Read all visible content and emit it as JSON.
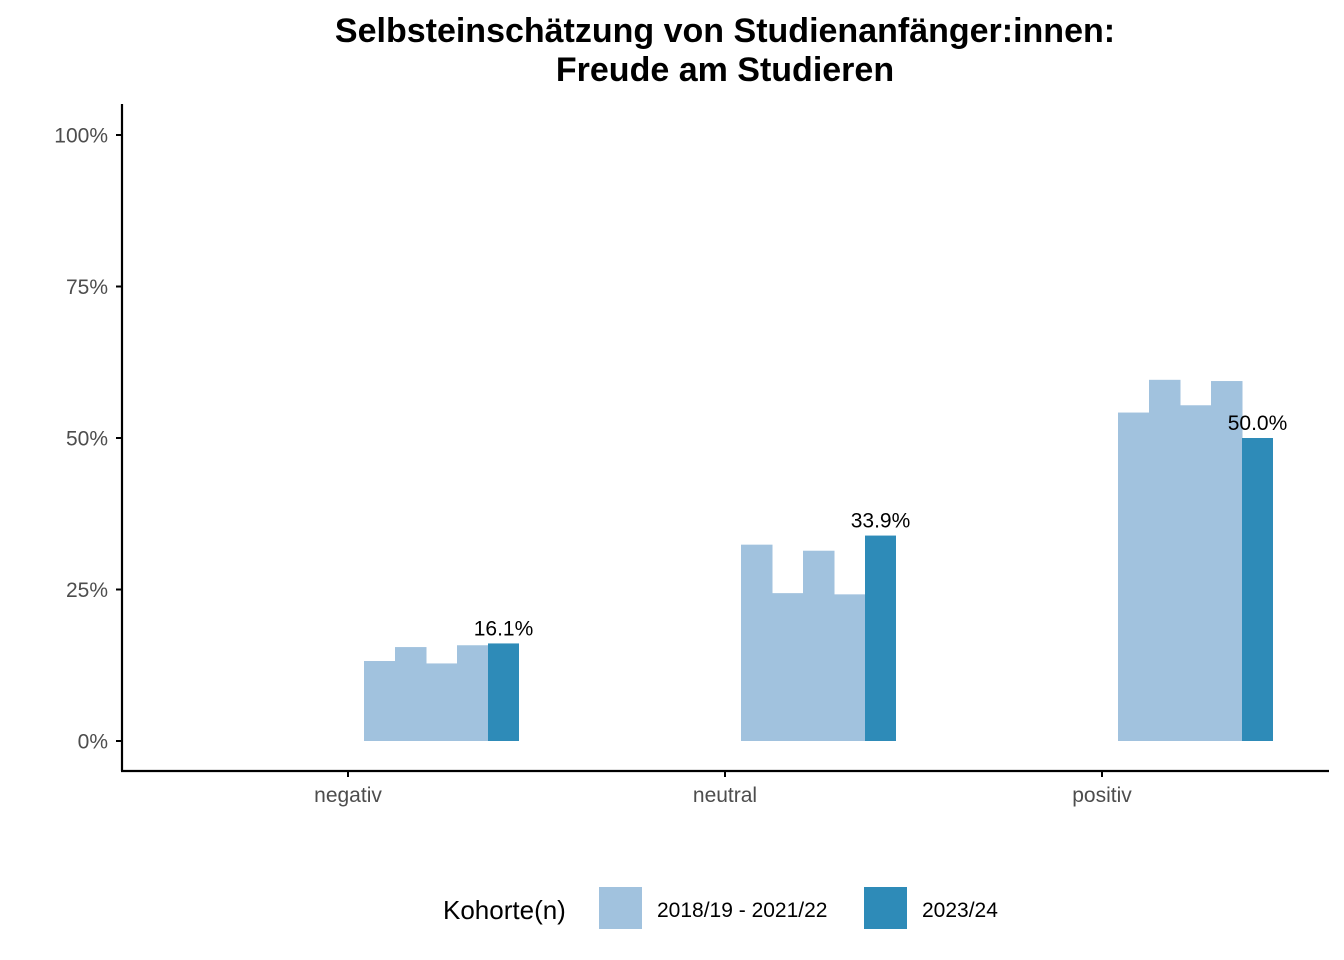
{
  "chart_data": {
    "type": "bar",
    "title": "Selbsteinschätzung von Studienanfänger:innen:",
    "subtitle": "Freude am Studieren",
    "xlabel": "",
    "ylabel": "",
    "categories": [
      "negativ",
      "neutral",
      "positiv"
    ],
    "ylim": [
      0,
      1
    ],
    "yticks": [
      0,
      0.25,
      0.5,
      0.75,
      1.0
    ],
    "ytick_labels": [
      "0%",
      "25%",
      "50%",
      "75%",
      "100%"
    ],
    "grid": false,
    "legend_position": "bottom",
    "legend_title": "Kohorte(n)",
    "legend_entries": [
      "2018/19 - 2021/22",
      "2023/24"
    ],
    "series_past": {
      "legend_entry": "2018/19 - 2021/22",
      "color": "#a1c2de",
      "values": [
        [
          0.132,
          0.155,
          0.128,
          0.158
        ],
        [
          0.324,
          0.244,
          0.314,
          0.242
        ],
        [
          0.542,
          0.596,
          0.554,
          0.594
        ]
      ]
    },
    "series_current": {
      "legend_entry": "2023/24",
      "color": "#2e8bb8",
      "values": [
        0.161,
        0.339,
        0.5
      ],
      "labels": [
        "16.1%",
        "33.9%",
        "50.0%"
      ]
    }
  }
}
